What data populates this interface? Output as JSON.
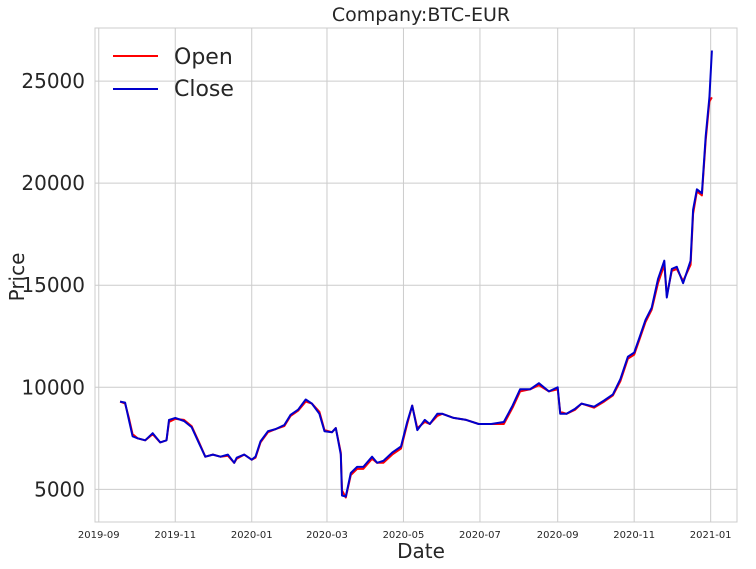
{
  "chart_data": {
    "type": "line",
    "title": "Company:BTC-EUR",
    "xlabel": "Date",
    "ylabel": "Price",
    "x_tick_labels": [
      "2019-09",
      "2019-11",
      "2020-01",
      "2020-03",
      "2020-05",
      "2020-07",
      "2020-09",
      "2020-11",
      "2021-01"
    ],
    "y_ticks": [
      5000,
      10000,
      15000,
      20000,
      25000
    ],
    "xlim": [
      "2019-08-29",
      "2021-01-22"
    ],
    "ylim": [
      3400,
      27600
    ],
    "grid": true,
    "legend_position": "top-left",
    "colors": {
      "open": "#ff0000",
      "close": "#0000cc"
    },
    "x": [
      "2019-09-18",
      "2019-09-22",
      "2019-09-25",
      "2019-09-28",
      "2019-10-02",
      "2019-10-08",
      "2019-10-14",
      "2019-10-20",
      "2019-10-25",
      "2019-10-27",
      "2019-11-01",
      "2019-11-08",
      "2019-11-14",
      "2019-11-20",
      "2019-11-25",
      "2019-12-01",
      "2019-12-07",
      "2019-12-13",
      "2019-12-18",
      "2019-12-20",
      "2019-12-26",
      "2020-01-01",
      "2020-01-04",
      "2020-01-08",
      "2020-01-14",
      "2020-01-20",
      "2020-01-27",
      "2020-02-01",
      "2020-02-07",
      "2020-02-13",
      "2020-02-18",
      "2020-02-24",
      "2020-02-28",
      "2020-03-05",
      "2020-03-08",
      "2020-03-12",
      "2020-03-13",
      "2020-03-16",
      "2020-03-20",
      "2020-03-25",
      "2020-03-30",
      "2020-04-06",
      "2020-04-10",
      "2020-04-15",
      "2020-04-22",
      "2020-04-29",
      "2020-05-04",
      "2020-05-08",
      "2020-05-12",
      "2020-05-18",
      "2020-05-22",
      "2020-05-28",
      "2020-06-01",
      "2020-06-10",
      "2020-06-20",
      "2020-06-30",
      "2020-07-10",
      "2020-07-20",
      "2020-07-27",
      "2020-08-02",
      "2020-08-10",
      "2020-08-17",
      "2020-08-25",
      "2020-09-01",
      "2020-09-03",
      "2020-09-08",
      "2020-09-15",
      "2020-09-20",
      "2020-09-30",
      "2020-10-08",
      "2020-10-15",
      "2020-10-21",
      "2020-10-27",
      "2020-11-01",
      "2020-11-05",
      "2020-11-10",
      "2020-11-15",
      "2020-11-20",
      "2020-11-25",
      "2020-11-27",
      "2020-12-01",
      "2020-12-05",
      "2020-12-10",
      "2020-12-16",
      "2020-12-18",
      "2020-12-21",
      "2020-12-25",
      "2020-12-28",
      "2020-12-31",
      "2021-01-02"
    ],
    "series": [
      {
        "name": "Open",
        "values": [
          9300,
          9200,
          8500,
          7700,
          7500,
          7400,
          7700,
          7300,
          7400,
          8300,
          8450,
          8400,
          8100,
          7300,
          6600,
          6700,
          6600,
          6650,
          6300,
          6500,
          6700,
          6450,
          6550,
          7300,
          7800,
          7950,
          8100,
          8600,
          8850,
          9300,
          9200,
          8800,
          7900,
          7800,
          8000,
          6800,
          4950,
          4600,
          5700,
          6000,
          6000,
          6500,
          6300,
          6300,
          6700,
          7000,
          8200,
          9100,
          8000,
          8300,
          8200,
          8600,
          8700,
          8500,
          8400,
          8200,
          8200,
          8200,
          9000,
          9800,
          9900,
          10100,
          9800,
          9900,
          8800,
          8700,
          8900,
          9200,
          9000,
          9300,
          9600,
          10300,
          11400,
          11600,
          12300,
          13200,
          13800,
          15100,
          16000,
          14500,
          15700,
          15800,
          15200,
          16000,
          18500,
          19600,
          19400,
          22100,
          24000,
          24200
        ]
      },
      {
        "name": "Close",
        "values": [
          9300,
          9250,
          8400,
          7600,
          7500,
          7400,
          7750,
          7300,
          7400,
          8400,
          8500,
          8350,
          8050,
          7250,
          6600,
          6700,
          6600,
          6700,
          6300,
          6550,
          6700,
          6450,
          6600,
          7350,
          7850,
          7950,
          8150,
          8650,
          8900,
          9400,
          9200,
          8700,
          7850,
          7800,
          8000,
          6700,
          4700,
          4650,
          5800,
          6100,
          6100,
          6600,
          6300,
          6400,
          6800,
          7100,
          8300,
          9100,
          7900,
          8400,
          8200,
          8700,
          8700,
          8500,
          8400,
          8200,
          8200,
          8300,
          9100,
          9900,
          9900,
          10200,
          9800,
          10000,
          8700,
          8700,
          8950,
          9200,
          9050,
          9350,
          9650,
          10400,
          11500,
          11700,
          12400,
          13300,
          13900,
          15300,
          16200,
          14400,
          15800,
          15900,
          15100,
          16200,
          18700,
          19700,
          19500,
          22300,
          24200,
          26500
        ]
      }
    ]
  },
  "legend": {
    "open_label": "Open",
    "close_label": "Close"
  }
}
